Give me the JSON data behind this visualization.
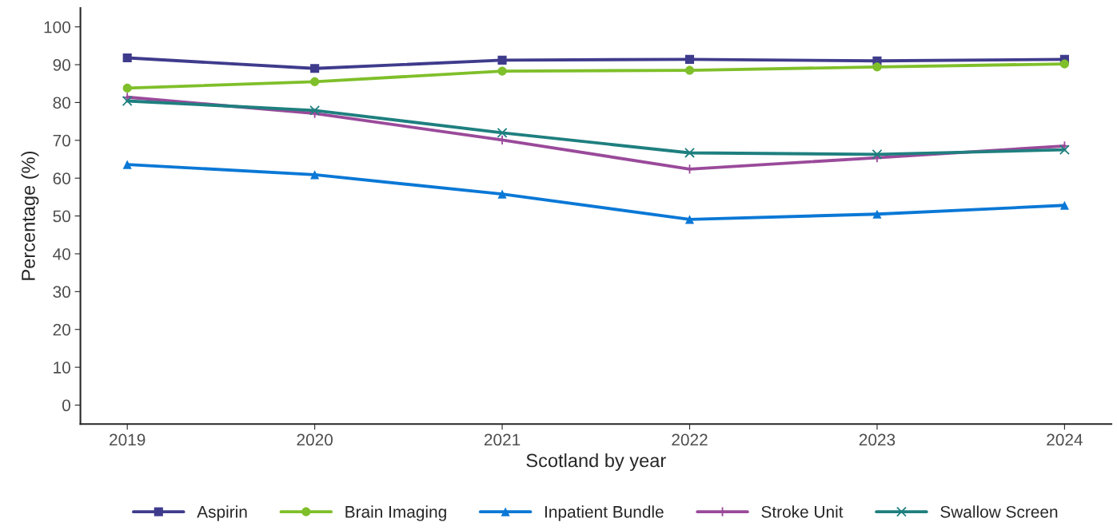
{
  "chart_data": {
    "type": "line",
    "xlabel": "Scotland by year",
    "ylabel": "Percentage (%)",
    "x": [
      2019,
      2020,
      2021,
      2022,
      2023,
      2024
    ],
    "xlim": [
      2018.75,
      2024.25
    ],
    "xticks": [
      2019,
      2020,
      2021,
      2022,
      2023,
      2024
    ],
    "ylim": [
      -5,
      105
    ],
    "yticks": [
      0,
      10,
      20,
      30,
      40,
      50,
      60,
      70,
      80,
      90,
      100
    ],
    "grid": false,
    "legend": "bottom",
    "line_style": "solid",
    "series": [
      {
        "name": "Aspirin",
        "color": "#3f3b8c",
        "marker": "square",
        "values": [
          91.8,
          89.0,
          91.2,
          91.4,
          91.0,
          91.4
        ]
      },
      {
        "name": "Brain Imaging",
        "color": "#7fbf2a",
        "marker": "circle",
        "values": [
          83.8,
          85.5,
          88.3,
          88.5,
          89.4,
          90.2
        ]
      },
      {
        "name": "Inpatient Bundle",
        "color": "#0a78d6",
        "marker": "triangle",
        "values": [
          63.6,
          60.9,
          55.8,
          49.1,
          50.5,
          52.8
        ]
      },
      {
        "name": "Stroke Unit",
        "color": "#9a4a9a",
        "marker": "plus",
        "values": [
          81.4,
          77.1,
          70.1,
          62.4,
          65.4,
          68.5
        ]
      },
      {
        "name": "Swallow Screen",
        "color": "#1f7f7f",
        "marker": "cross",
        "values": [
          80.4,
          77.9,
          72.0,
          66.7,
          66.3,
          67.5
        ]
      }
    ]
  }
}
